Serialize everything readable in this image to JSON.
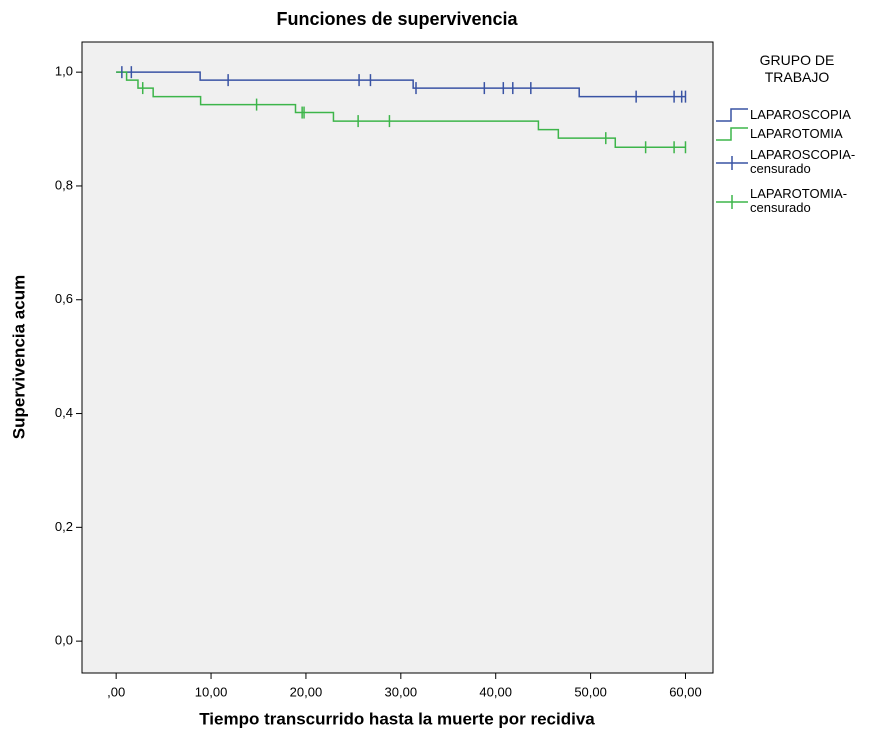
{
  "chart_data": {
    "type": "step",
    "title": "Funciones de supervivencia",
    "xlabel": "Tiempo transcurrido hasta la muerte por recidiva",
    "ylabel": "Supervivencia acum",
    "legend_title": "GRUPO DE\nTRABAJO",
    "legend": "right",
    "xlim": [
      -3.6,
      62.9
    ],
    "ylim": [
      -0.056,
      1.053
    ],
    "xticks": [
      {
        "value": 0,
        "label": ",00"
      },
      {
        "value": 10,
        "label": "10,00"
      },
      {
        "value": 20,
        "label": "20,00"
      },
      {
        "value": 30,
        "label": "30,00"
      },
      {
        "value": 40,
        "label": "40,00"
      },
      {
        "value": 50,
        "label": "50,00"
      },
      {
        "value": 60,
        "label": "60,00"
      }
    ],
    "yticks": [
      {
        "value": 0,
        "label": "0,0"
      },
      {
        "value": 0.2,
        "label": "0,2"
      },
      {
        "value": 0.4,
        "label": "0,4"
      },
      {
        "value": 0.6,
        "label": "0,6"
      },
      {
        "value": 0.8,
        "label": "0,8"
      },
      {
        "value": 1.0,
        "label": "1,0"
      }
    ],
    "series": [
      {
        "name": "LAPAROSCOPIA",
        "color": "#3953a4",
        "x": [
          0,
          8.85,
          31.3,
          48.8,
          60
        ],
        "values": [
          1.0,
          0.986,
          0.972,
          0.957,
          0.957
        ]
      },
      {
        "name": "LAPAROTOMIA",
        "color": "#3db54a",
        "x": [
          0,
          1.1,
          2.3,
          3.9,
          8.9,
          18.9,
          22.9,
          44.5,
          46.6,
          52.6,
          60
        ],
        "values": [
          1.0,
          0.986,
          0.972,
          0.957,
          0.943,
          0.929,
          0.914,
          0.899,
          0.884,
          0.868,
          0.868
        ]
      },
      {
        "name": "LAPAROSCOPIA-\ncensurado",
        "color": "#3953a4",
        "marker": "+",
        "x": [
          0.6,
          1.6,
          11.8,
          25.6,
          26.8,
          31.6,
          38.8,
          40.8,
          41.8,
          43.7,
          54.8,
          58.8,
          59.6,
          60
        ],
        "values": [
          1.0,
          1.0,
          0.986,
          0.986,
          0.986,
          0.972,
          0.972,
          0.972,
          0.972,
          0.972,
          0.957,
          0.957,
          0.957,
          0.957
        ]
      },
      {
        "name": "LAPAROTOMIA-\ncensurado",
        "color": "#3db54a",
        "marker": "+",
        "x": [
          2.8,
          14.8,
          19.6,
          19.8,
          25.5,
          28.8,
          51.6,
          55.8,
          58.8,
          60
        ],
        "values": [
          0.972,
          0.943,
          0.929,
          0.929,
          0.914,
          0.914,
          0.884,
          0.868,
          0.868,
          0.868
        ]
      }
    ]
  }
}
